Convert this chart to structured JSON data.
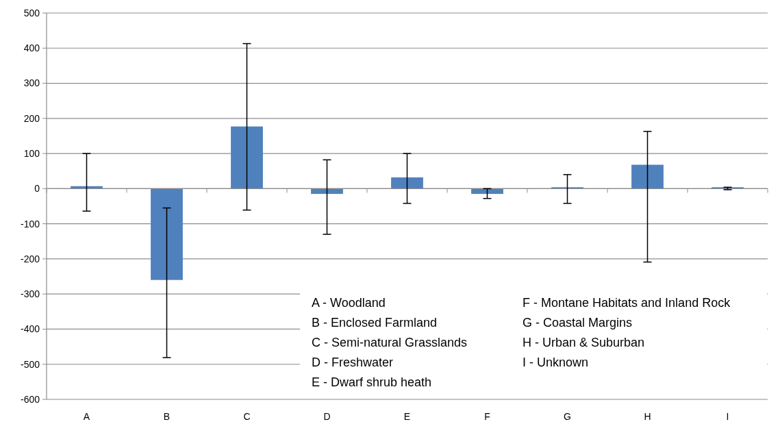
{
  "chart_data": {
    "type": "bar",
    "categories": [
      "A",
      "B",
      "C",
      "D",
      "E",
      "F",
      "G",
      "H",
      "I"
    ],
    "values": [
      7,
      -260,
      177,
      -15,
      32,
      -15,
      4,
      68,
      4
    ],
    "errors": [
      [
        -64,
        100
      ],
      [
        -481,
        -55
      ],
      [
        -61,
        413
      ],
      [
        -130,
        82
      ],
      [
        -42,
        100
      ],
      [
        -28,
        0
      ],
      [
        -42,
        40
      ],
      [
        -209,
        163
      ],
      [
        -3,
        4
      ]
    ],
    "color": "#4f81bd",
    "ylim": [
      -600,
      500
    ],
    "yticks": [
      -600,
      -500,
      -400,
      -300,
      -200,
      -100,
      0,
      100,
      200,
      300,
      400,
      500
    ],
    "grid": "y",
    "annotations": [
      "A - Woodland",
      "B - Enclosed Farmland",
      "C - Semi-natural Grasslands",
      "D - Freshwater",
      "E - Dwarf shrub heath",
      "F - Montane Habitats and Inland Rock",
      "G - Coastal Margins",
      "H - Urban & Suburban",
      "I - Unknown"
    ]
  }
}
